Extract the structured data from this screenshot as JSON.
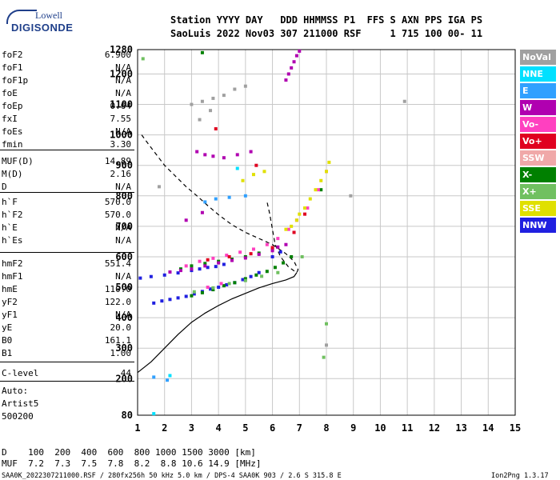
{
  "logo": {
    "line1": "Lowell",
    "line2": "DIGISONDE"
  },
  "header": {
    "line1": "Station YYYY DAY   DDD HHMMSS P1  FFS S AXN PPS IGA PS",
    "line2": "SaoLuis 2022 Nov03 307 211000 RSF     1 715 100 00- 11"
  },
  "params": [
    {
      "k": "foF2",
      "v": "6.900"
    },
    {
      "k": "foF1",
      "v": "N/A"
    },
    {
      "k": "foF1p",
      "v": "N/A"
    },
    {
      "k": "foE",
      "v": "N/A"
    },
    {
      "k": "foEp",
      "v": "0.64"
    },
    {
      "k": "fxI",
      "v": "7.55"
    },
    {
      "k": "foEs",
      "v": "N/A"
    },
    {
      "k": "fmin",
      "v": "3.30"
    },
    {
      "k": "MUF(D)",
      "v": "14.89"
    },
    {
      "k": "M(D)",
      "v": "2.16"
    },
    {
      "k": "D",
      "v": "N/A"
    },
    {
      "k": "h`F",
      "v": "570.0"
    },
    {
      "k": "h`F2",
      "v": "570.0"
    },
    {
      "k": "h`E",
      "v": "N/A"
    },
    {
      "k": "h`Es",
      "v": "N/A"
    },
    {
      "k": "hmF2",
      "v": "551.4"
    },
    {
      "k": "hmF1",
      "v": "N/A"
    },
    {
      "k": "hmE",
      "v": "110.0"
    },
    {
      "k": "yF2",
      "v": "122.0"
    },
    {
      "k": "yF1",
      "v": "N/A"
    },
    {
      "k": "yE",
      "v": "20.0"
    },
    {
      "k": "B0",
      "v": "161.1"
    },
    {
      "k": "B1",
      "v": "1.00"
    },
    {
      "k": "C-level",
      "v": "44"
    }
  ],
  "auto": {
    "line1": "Auto:",
    "line2": "Artist5",
    "line3": "500200"
  },
  "legend": [
    {
      "label": "NoVal",
      "color": "#a0a0a0"
    },
    {
      "label": "NNE",
      "color": "#00e0ff"
    },
    {
      "label": "E",
      "color": "#30a0ff"
    },
    {
      "label": "W",
      "color": "#b000b0"
    },
    {
      "label": "Vo-",
      "color": "#ff40c0"
    },
    {
      "label": "Vo+",
      "color": "#e00020"
    },
    {
      "label": "SSW",
      "color": "#f0a8a8"
    },
    {
      "label": "X-",
      "color": "#008000"
    },
    {
      "label": "X+",
      "color": "#70c060"
    },
    {
      "label": "SSE",
      "color": "#e0e000"
    },
    {
      "label": "NNW",
      "color": "#2020e0"
    }
  ],
  "muf_table": {
    "row1": "D    100  200  400  600  800 1000 1500 3000 [km]",
    "row2": "MUF  7.2  7.3  7.5  7.8  8.2  8.8 10.6 14.9 [MHz]"
  },
  "footer": {
    "left": "SAA0K_2022307211000.RSF / 280fx256h 50 kHz 5.0 km / DPS-4 SAA0K 903 / 2.6 S 315.8 E",
    "right": "Ion2Png 1.3.17"
  },
  "chart_data": {
    "type": "scatter",
    "title": "",
    "xlabel": "",
    "ylabel": "",
    "xlim": [
      1,
      15
    ],
    "ylim": [
      80,
      1280
    ],
    "x_ticks": [
      "1",
      "2",
      "3",
      "4",
      "5",
      "6",
      "7",
      "8",
      "9",
      "10",
      "11",
      "12",
      "13",
      "14",
      "15"
    ],
    "y_ticks": [
      "80",
      "200",
      "300",
      "400",
      "500",
      "600",
      "700",
      "800",
      "900",
      "1000",
      "1100",
      "1200",
      "1280"
    ],
    "grid": true,
    "series": [
      {
        "name": "NNW",
        "color": "#2020e0",
        "x": [
          1.6,
          1.9,
          2.2,
          2.5,
          2.8,
          3.1,
          3.4,
          3.7,
          4.0,
          4.3,
          4.6,
          4.9,
          5.2,
          5.5,
          1.1,
          1.5,
          2.0,
          2.5,
          3.0,
          3.3,
          3.6,
          3.9,
          4.2,
          6.0,
          6.3
        ],
        "y": [
          448,
          455,
          460,
          465,
          470,
          478,
          486,
          494,
          500,
          508,
          515,
          525,
          535,
          548,
          530,
          535,
          540,
          547,
          555,
          560,
          565,
          568,
          575,
          600,
          616
        ]
      },
      {
        "name": "X-",
        "color": "#008000",
        "x": [
          3.0,
          3.4,
          3.8,
          4.2,
          4.6,
          5.0,
          5.4,
          5.8,
          6.1,
          6.4,
          6.7,
          2.6,
          3.0,
          3.5,
          4.0,
          4.5,
          5.0,
          5.5,
          6.0,
          3.4,
          7.8
        ],
        "y": [
          472,
          482,
          492,
          505,
          515,
          528,
          540,
          552,
          565,
          580,
          600,
          560,
          570,
          578,
          585,
          592,
          600,
          612,
          625,
          1270,
          820
        ]
      },
      {
        "name": "W",
        "color": "#b000b0",
        "x": [
          2.2,
          2.6,
          3.0,
          3.5,
          4.0,
          4.5,
          5.0,
          5.5,
          6.0,
          6.2,
          6.5,
          3.2,
          3.5,
          3.8,
          4.2,
          4.7,
          5.2,
          6.5,
          6.6,
          6.7,
          6.8,
          6.9,
          7.0,
          2.8,
          3.4
        ],
        "y": [
          550,
          555,
          560,
          570,
          580,
          588,
          596,
          608,
          620,
          632,
          640,
          945,
          935,
          930,
          925,
          935,
          945,
          1180,
          1200,
          1220,
          1240,
          1260,
          1275,
          720,
          745
        ]
      },
      {
        "name": "Vo-",
        "color": "#ff40c0",
        "x": [
          2.8,
          3.3,
          3.8,
          4.3,
          4.8,
          5.3,
          5.8,
          6.2,
          6.6,
          6.9,
          7.3,
          7.7,
          8.0,
          3.6,
          4.1
        ],
        "y": [
          570,
          585,
          595,
          605,
          615,
          625,
          640,
          660,
          690,
          720,
          760,
          820,
          880,
          500,
          512
        ]
      },
      {
        "name": "SSE",
        "color": "#e0e000",
        "x": [
          6.5,
          6.7,
          6.9,
          7.0,
          7.2,
          7.4,
          7.6,
          7.8,
          8.0,
          8.1,
          4.9,
          5.3,
          5.7
        ],
        "y": [
          690,
          700,
          720,
          740,
          760,
          790,
          820,
          850,
          880,
          910,
          850,
          870,
          880
        ]
      },
      {
        "name": "X+",
        "color": "#70c060",
        "x": [
          3.1,
          3.8,
          4.4,
          5.0,
          5.6,
          6.2,
          7.1,
          7.9,
          8.0,
          1.2
        ],
        "y": [
          485,
          498,
          512,
          522,
          536,
          548,
          600,
          270,
          380,
          1250
        ]
      },
      {
        "name": "Vo+",
        "color": "#e00020",
        "x": [
          3.6,
          4.4,
          5.2,
          6.0,
          6.8,
          7.2,
          3.9,
          5.4
        ],
        "y": [
          590,
          600,
          610,
          630,
          680,
          740,
          1020,
          900
        ]
      },
      {
        "name": "NoVal",
        "color": "#a0a0a0",
        "x": [
          3.0,
          3.4,
          3.8,
          4.2,
          4.6,
          5.0,
          3.3,
          3.7,
          8.0,
          8.9,
          10.9,
          1.8
        ],
        "y": [
          1100,
          1110,
          1120,
          1130,
          1150,
          1160,
          1050,
          1080,
          310,
          800,
          1110,
          830
        ]
      },
      {
        "name": "E",
        "color": "#30a0ff",
        "x": [
          3.5,
          3.9,
          4.4,
          5.0,
          1.6,
          2.1
        ],
        "y": [
          780,
          790,
          795,
          800,
          205,
          195
        ]
      },
      {
        "name": "NNE",
        "color": "#00e0ff",
        "x": [
          1.6,
          2.2,
          4.7
        ],
        "y": [
          85,
          210,
          890
        ]
      }
    ],
    "profile_curve": {
      "x": [
        1.0,
        1.5,
        2.0,
        2.5,
        3.0,
        3.5,
        4.0,
        4.5,
        5.0,
        5.5,
        6.0,
        6.5,
        6.8,
        6.9
      ],
      "y": [
        220,
        255,
        300,
        345,
        385,
        415,
        440,
        462,
        480,
        498,
        512,
        524,
        535,
        548
      ]
    },
    "dashed_curve": {
      "x": [
        1.15,
        1.4,
        1.7,
        2.0,
        2.4,
        2.8,
        3.2,
        3.6,
        4.0,
        4.5,
        5.0,
        5.5,
        6.0,
        6.5,
        6.8,
        6.95,
        6.9,
        6.6,
        6.3,
        6.1,
        6.0,
        5.9,
        5.8
      ],
      "y": [
        1000,
        970,
        935,
        900,
        865,
        830,
        800,
        768,
        738,
        705,
        680,
        660,
        640,
        610,
        585,
        558,
        548,
        566,
        600,
        640,
        690,
        740,
        780
      ]
    }
  }
}
